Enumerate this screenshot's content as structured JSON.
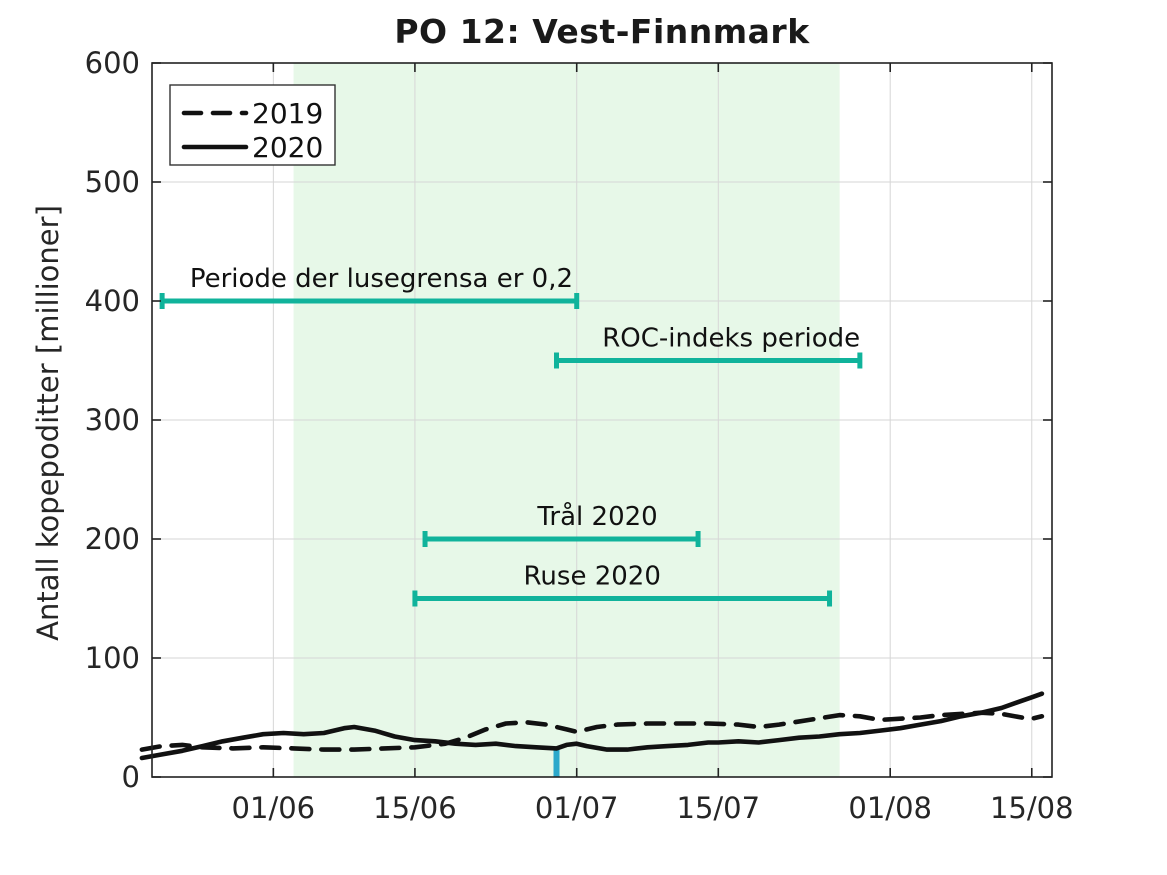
{
  "chart_data": {
    "type": "line",
    "title": "PO 12: Vest-Finnmark",
    "xlabel": "",
    "ylabel": "Antall kopepoditter [millioner]",
    "ylim": [
      0,
      600
    ],
    "yticks": [
      0,
      100,
      200,
      300,
      400,
      500,
      600
    ],
    "xticks": [
      "01/06",
      "15/06",
      "01/07",
      "15/07",
      "01/08",
      "15/08"
    ],
    "x_domain": [
      "20/05",
      "17/08"
    ],
    "grid": true,
    "legend_position": "top-left",
    "colors": {
      "line": "#111111",
      "interval_bar": "#10B39B",
      "event_marker": "#2BA8CB",
      "shaded_band": "#E7F8E8",
      "grid": "#D6D6D6",
      "axis": "#222222",
      "text": "#262626"
    },
    "shaded_region": {
      "start": "03/06",
      "end": "27/07"
    },
    "series": [
      {
        "name": "2019",
        "style": "dashed",
        "points": [
          [
            "19/05",
            23
          ],
          [
            "21/05",
            26
          ],
          [
            "23/05",
            27
          ],
          [
            "25/05",
            25
          ],
          [
            "28/05",
            24
          ],
          [
            "31/05",
            25
          ],
          [
            "03/06",
            24
          ],
          [
            "06/06",
            23
          ],
          [
            "09/06",
            23
          ],
          [
            "12/06",
            24
          ],
          [
            "15/06",
            25
          ],
          [
            "18/06",
            28
          ],
          [
            "20/06",
            33
          ],
          [
            "22/06",
            40
          ],
          [
            "24/06",
            45
          ],
          [
            "26/06",
            46
          ],
          [
            "28/06",
            44
          ],
          [
            "30/06",
            40
          ],
          [
            "01/07",
            38
          ],
          [
            "03/07",
            42
          ],
          [
            "05/07",
            44
          ],
          [
            "08/07",
            45
          ],
          [
            "11/07",
            45
          ],
          [
            "14/07",
            45
          ],
          [
            "17/07",
            44
          ],
          [
            "19/07",
            42
          ],
          [
            "21/07",
            44
          ],
          [
            "24/07",
            48
          ],
          [
            "27/07",
            52
          ],
          [
            "29/07",
            51
          ],
          [
            "31/07",
            48
          ],
          [
            "02/08",
            49
          ],
          [
            "04/08",
            50
          ],
          [
            "06/08",
            52
          ],
          [
            "08/08",
            53
          ],
          [
            "10/08",
            54
          ],
          [
            "12/08",
            53
          ],
          [
            "14/08",
            50
          ],
          [
            "15/08",
            49
          ],
          [
            "16/08",
            51
          ]
        ]
      },
      {
        "name": "2020",
        "style": "solid",
        "points": [
          [
            "19/05",
            16
          ],
          [
            "21/05",
            19
          ],
          [
            "23/05",
            22
          ],
          [
            "25/05",
            26
          ],
          [
            "27/05",
            30
          ],
          [
            "29/05",
            33
          ],
          [
            "31/05",
            36
          ],
          [
            "02/06",
            37
          ],
          [
            "04/06",
            36
          ],
          [
            "06/06",
            37
          ],
          [
            "08/06",
            41
          ],
          [
            "09/06",
            42
          ],
          [
            "11/06",
            39
          ],
          [
            "13/06",
            34
          ],
          [
            "15/06",
            31
          ],
          [
            "17/06",
            30
          ],
          [
            "19/06",
            28
          ],
          [
            "21/06",
            27
          ],
          [
            "23/06",
            28
          ],
          [
            "25/06",
            26
          ],
          [
            "27/06",
            25
          ],
          [
            "29/06",
            24
          ],
          [
            "30/06",
            27
          ],
          [
            "01/07",
            28
          ],
          [
            "02/07",
            26
          ],
          [
            "04/07",
            23
          ],
          [
            "06/07",
            23
          ],
          [
            "08/07",
            25
          ],
          [
            "10/07",
            26
          ],
          [
            "12/07",
            27
          ],
          [
            "14/07",
            29
          ],
          [
            "15/07",
            29
          ],
          [
            "17/07",
            30
          ],
          [
            "19/07",
            29
          ],
          [
            "21/07",
            31
          ],
          [
            "23/07",
            33
          ],
          [
            "25/07",
            34
          ],
          [
            "27/07",
            36
          ],
          [
            "29/07",
            37
          ],
          [
            "31/07",
            39
          ],
          [
            "02/08",
            41
          ],
          [
            "04/08",
            44
          ],
          [
            "06/08",
            47
          ],
          [
            "08/08",
            51
          ],
          [
            "10/08",
            54
          ],
          [
            "12/08",
            58
          ],
          [
            "14/08",
            64
          ],
          [
            "15/08",
            67
          ],
          [
            "16/08",
            70
          ]
        ]
      }
    ],
    "interval_annotations": [
      {
        "label": "Periode der lusegrensa er 0,2",
        "y": 400,
        "start": "21/05",
        "end": "01/07",
        "label_dx": 12
      },
      {
        "label": "ROC-indeks periode",
        "y": 350,
        "start": "29/06",
        "end": "29/07",
        "label_dx": 23
      },
      {
        "label": "Trål 2020",
        "y": 200,
        "start": "16/06",
        "end": "13/07",
        "label_dx": 36
      },
      {
        "label": "Ruse 2020",
        "y": 150,
        "start": "15/06",
        "end": "26/07",
        "label_dx": -30
      }
    ],
    "event_marker": {
      "date": "29/06",
      "y0": 0,
      "y1": 24
    }
  }
}
